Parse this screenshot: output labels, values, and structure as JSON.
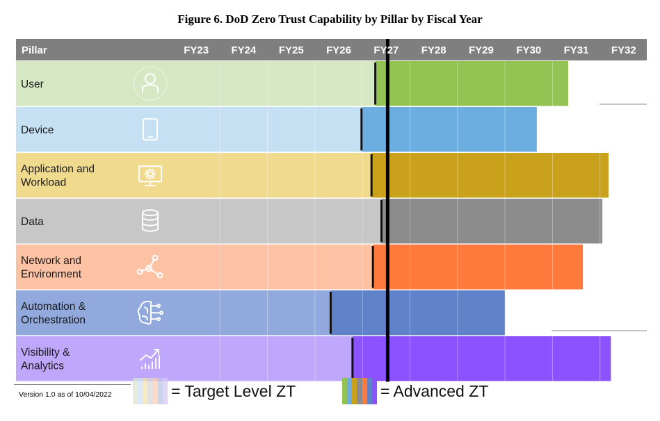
{
  "title": "Figure 6. DoD Zero Trust Capability by Pillar by Fiscal Year",
  "version_note": "Version 1.0 as of 10/04/2022",
  "legend": {
    "target_label": "= Target Level ZT",
    "advanced_label": "= Advanced ZT",
    "target_colors": [
      "#dbe8cf",
      "#cfe3f3",
      "#f3e2b0",
      "#d7d7d7",
      "#f9cfba",
      "#b9c8e8",
      "#d5c8f5"
    ],
    "advanced_colors": [
      "#92c353",
      "#6baedf",
      "#c9a11a",
      "#8c8c8c",
      "#ff7a3b",
      "#5f82c9",
      "#8d52ff"
    ]
  },
  "chart_data": {
    "type": "bar",
    "title": "Figure 6. DoD Zero Trust Capability by Pillar by Fiscal Year",
    "header_label": "Pillar",
    "categories": [
      "FY23",
      "FY24",
      "FY25",
      "FY26",
      "FY27",
      "FY28",
      "FY29",
      "FY30",
      "FY31",
      "FY32"
    ],
    "xlim": [
      0,
      10
    ],
    "fy27_marker": 4.53,
    "pillars": [
      {
        "name": "User",
        "icon": "user-icon",
        "target_end": 4.27,
        "advanced_end": 8.33,
        "light": "#d6e7c4",
        "dark": "#92c353"
      },
      {
        "name": "Device",
        "icon": "tablet-icon",
        "target_end": 3.98,
        "advanced_end": 7.67,
        "light": "#c5e0f3",
        "dark": "#6baedf"
      },
      {
        "name": "Application and Workload",
        "icon": "monitor-gear-icon",
        "target_end": 4.19,
        "advanced_end": 9.18,
        "light": "#f0da8e",
        "dark": "#c9a11a"
      },
      {
        "name": "Data",
        "icon": "database-icon",
        "target_end": 4.4,
        "advanced_end": 9.05,
        "light": "#c7c7c7",
        "dark": "#8c8c8c"
      },
      {
        "name": "Network and Environment",
        "icon": "network-icon",
        "target_end": 4.22,
        "advanced_end": 8.64,
        "light": "#fdc2a4",
        "dark": "#ff7a3b"
      },
      {
        "name": "Automation & Orchestration",
        "icon": "brain-circuit-icon",
        "target_end": 3.33,
        "advanced_end": 7.0,
        "light": "#91a9dc",
        "dark": "#5f82c9"
      },
      {
        "name": "Visibility & Analytics",
        "icon": "analytics-icon",
        "target_end": 3.79,
        "advanced_end": 9.23,
        "light": "#bfa7fb",
        "dark": "#8d52ff"
      }
    ]
  }
}
